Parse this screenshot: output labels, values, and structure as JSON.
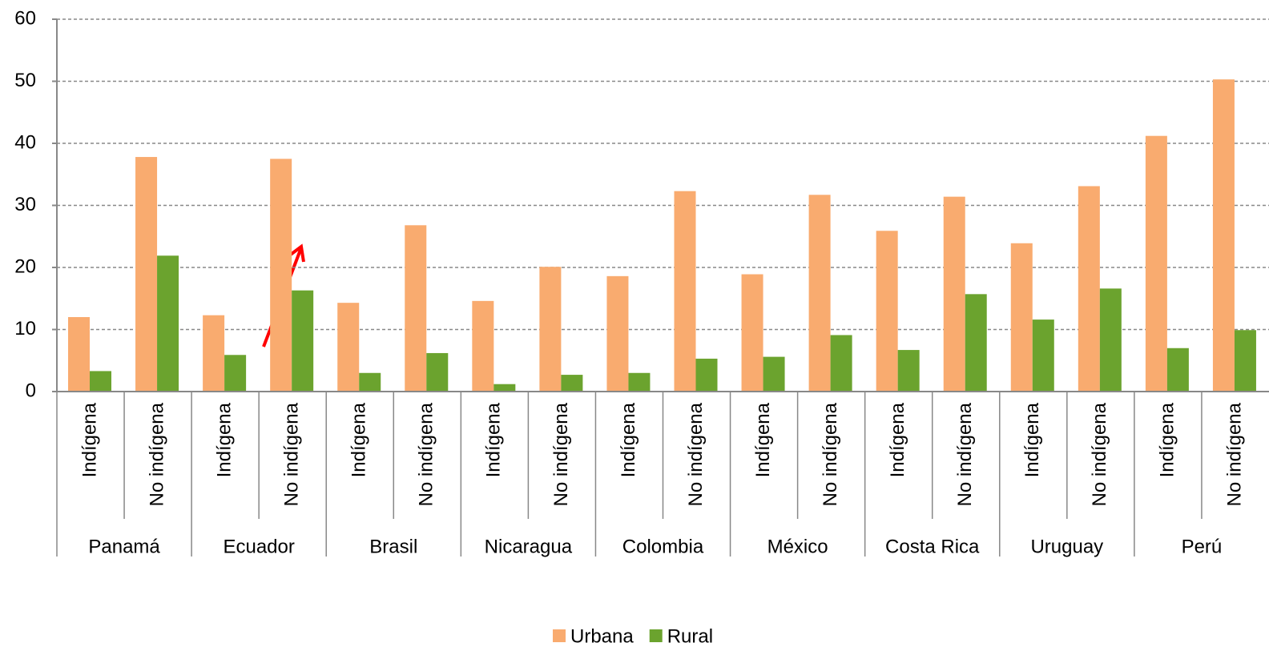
{
  "chart_data": {
    "type": "bar",
    "categories": [
      "Indígena",
      "No indígena",
      "Indígena",
      "No indígena",
      "Indígena",
      "No indígena",
      "Indígena",
      "No indígena",
      "Indígena",
      "No indígena",
      "Indígena",
      "No indígena",
      "Indígena",
      "No indígena",
      "Indígena",
      "No indígena",
      "Indígena",
      "No indígena"
    ],
    "groups": [
      "Panamá",
      "Ecuador",
      "Brasil",
      "Nicaragua",
      "Colombia",
      "México",
      "Costa Rica",
      "Uruguay",
      "Perú"
    ],
    "series": [
      {
        "name": "Urbana",
        "color": "#f9ab6f",
        "values": [
          12,
          37.8,
          12.3,
          37.5,
          14.3,
          26.8,
          14.6,
          20.1,
          18.6,
          32.3,
          18.9,
          31.7,
          25.9,
          31.4,
          23.9,
          33.1,
          41.2,
          50.3
        ]
      },
      {
        "name": "Rural",
        "color": "#6ba32e",
        "values": [
          3.3,
          21.9,
          5.9,
          16.3,
          3.0,
          6.2,
          1.2,
          2.7,
          3.0,
          5.3,
          5.6,
          9.1,
          6.7,
          15.7,
          11.6,
          16.6,
          7.0,
          9.9
        ]
      }
    ],
    "ylim": [
      0,
      60
    ],
    "yticks": [
      0,
      10,
      20,
      30,
      40,
      50,
      60
    ],
    "grid": true,
    "legend": "bottom"
  }
}
